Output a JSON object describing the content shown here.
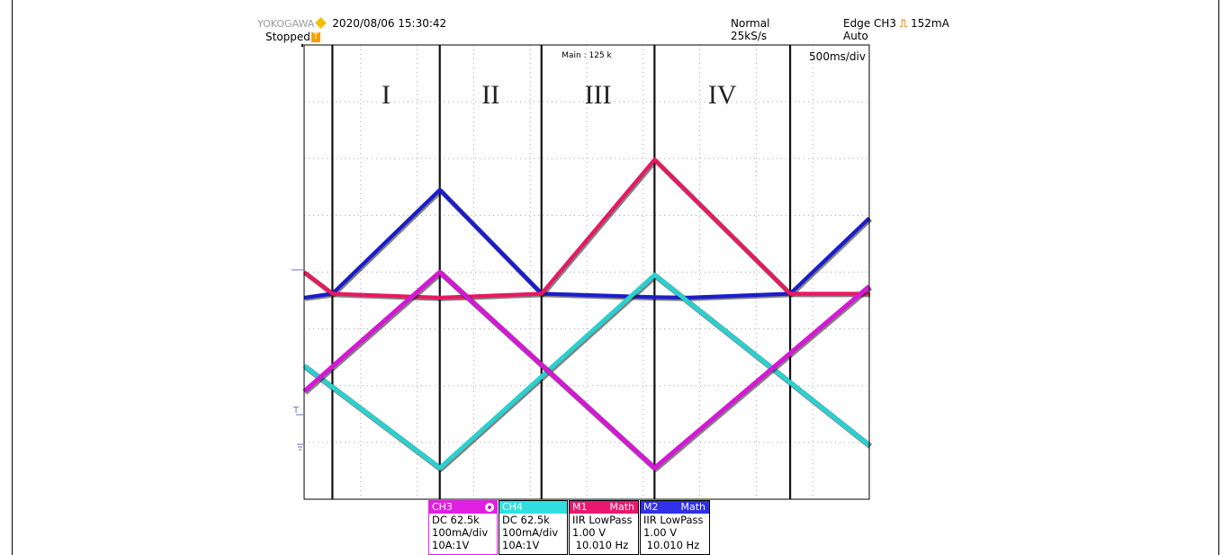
{
  "header": {
    "brand": "YOKOGAWA",
    "datetime": "2020/08/06 15:30:42",
    "state": "Stopped",
    "mode": "Normal",
    "sample_rate": "25kS/s",
    "trigger_label": "Edge CH3",
    "trigger_level": "152mA",
    "trigger_mode": "Auto",
    "main_points": "Main : 125 k",
    "timebase": "500ms/div",
    "trigger_icon": "T"
  },
  "regions": [
    "I",
    "II",
    "III",
    "IV"
  ],
  "markers": {
    "trigger": "T",
    "ground": "ground-icon",
    "position": "level-marker"
  },
  "channels": [
    {
      "name": "CH3",
      "head_right": "",
      "color": "#e020e0",
      "line1": "DC 62.5k",
      "line2": "100mA/div",
      "line3": "10A:1V"
    },
    {
      "name": "CH4",
      "head_right": "",
      "color": "#30e0e0",
      "line1": "DC 62.5k",
      "line2": "100mA/div",
      "line3": "10A:1V"
    },
    {
      "name": "M1",
      "head_right": "Math",
      "color": "#e81870",
      "line1": "IIR LowPass",
      "line2": "1.00 V",
      "line3": " 10.010 Hz"
    },
    {
      "name": "M2",
      "head_right": "Math",
      "color": "#3030e8",
      "line1": "IIR LowPass",
      "line2": "1.00 V",
      "line3": " 10.010 Hz"
    }
  ],
  "chart_data": {
    "type": "line",
    "x_unit": "s",
    "xlim": [
      0,
      5
    ],
    "ylim": [
      0,
      8
    ],
    "grid": true,
    "grid_divisions": {
      "x": 10,
      "y": 8
    },
    "region_boundaries": [
      0.25,
      1.2,
      2.1,
      3.1,
      4.3
    ],
    "series": [
      {
        "key": "m2",
        "color": "#1c1ccc",
        "width": 4.2,
        "points": [
          [
            0,
            3.55
          ],
          [
            0.25,
            3.62
          ],
          [
            1.2,
            5.45
          ],
          [
            2.1,
            3.62
          ],
          [
            3.1,
            3.56
          ],
          [
            3.4,
            3.55
          ],
          [
            4.3,
            3.62
          ],
          [
            5,
            4.95
          ]
        ]
      },
      {
        "key": "m1",
        "color": "#e81860",
        "width": 4.2,
        "points": [
          [
            0,
            4.0
          ],
          [
            0.25,
            3.62
          ],
          [
            1.2,
            3.55
          ],
          [
            2.1,
            3.62
          ],
          [
            3.1,
            5.98
          ],
          [
            4.3,
            3.62
          ],
          [
            5,
            3.62
          ]
        ]
      },
      {
        "key": "ch4",
        "color": "#2ad0d0",
        "width": 5,
        "points": [
          [
            0,
            2.35
          ],
          [
            1.2,
            0.55
          ],
          [
            3.1,
            3.95
          ],
          [
            5,
            0.95
          ]
        ]
      },
      {
        "key": "ch3",
        "color": "#d418d4",
        "width": 5,
        "points": [
          [
            0,
            1.9
          ],
          [
            1.2,
            4.0
          ],
          [
            3.1,
            0.55
          ],
          [
            5,
            3.75
          ]
        ]
      }
    ]
  }
}
